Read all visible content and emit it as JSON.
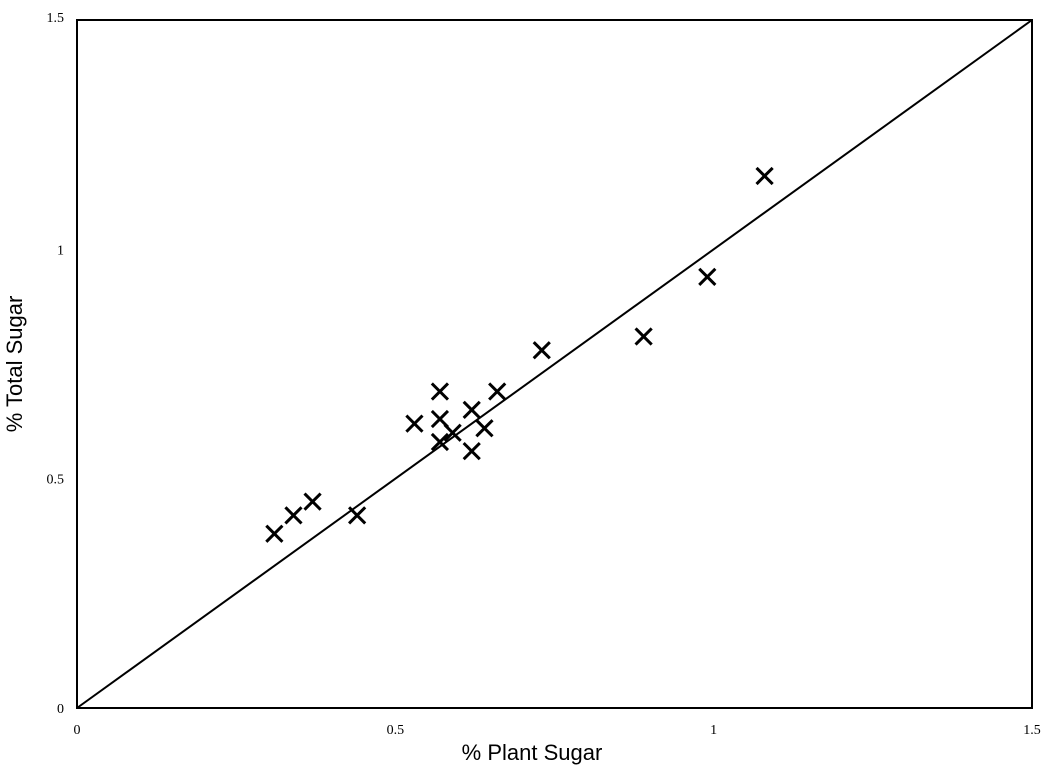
{
  "chart_data": {
    "type": "scatter",
    "title": "",
    "xlabel": "% Plant Sugar",
    "ylabel": "% Total Sugar",
    "xlim": [
      0,
      1.5
    ],
    "ylim": [
      0,
      1.5
    ],
    "x_ticks": [
      0,
      0.5,
      1,
      1.5
    ],
    "y_ticks": [
      0,
      0.5,
      1,
      1.5
    ],
    "x_tick_labels": [
      "0",
      "0.5",
      "1",
      "1.5"
    ],
    "y_tick_labels": [
      "0",
      "0.5",
      "1",
      "1.5"
    ],
    "grid": false,
    "marker": "x",
    "reference_line": {
      "from": [
        0,
        0
      ],
      "to": [
        1.5,
        1.5
      ]
    },
    "series": [
      {
        "points": [
          {
            "x": 0.31,
            "y": 0.38
          },
          {
            "x": 0.34,
            "y": 0.42
          },
          {
            "x": 0.37,
            "y": 0.45
          },
          {
            "x": 0.44,
            "y": 0.42
          },
          {
            "x": 0.53,
            "y": 0.62
          },
          {
            "x": 0.57,
            "y": 0.69
          },
          {
            "x": 0.57,
            "y": 0.63
          },
          {
            "x": 0.57,
            "y": 0.58
          },
          {
            "x": 0.59,
            "y": 0.6
          },
          {
            "x": 0.62,
            "y": 0.65
          },
          {
            "x": 0.62,
            "y": 0.56
          },
          {
            "x": 0.64,
            "y": 0.61
          },
          {
            "x": 0.66,
            "y": 0.69
          },
          {
            "x": 0.73,
            "y": 0.78
          },
          {
            "x": 0.89,
            "y": 0.81
          },
          {
            "x": 0.99,
            "y": 0.94
          },
          {
            "x": 1.08,
            "y": 1.16
          }
        ]
      }
    ]
  }
}
